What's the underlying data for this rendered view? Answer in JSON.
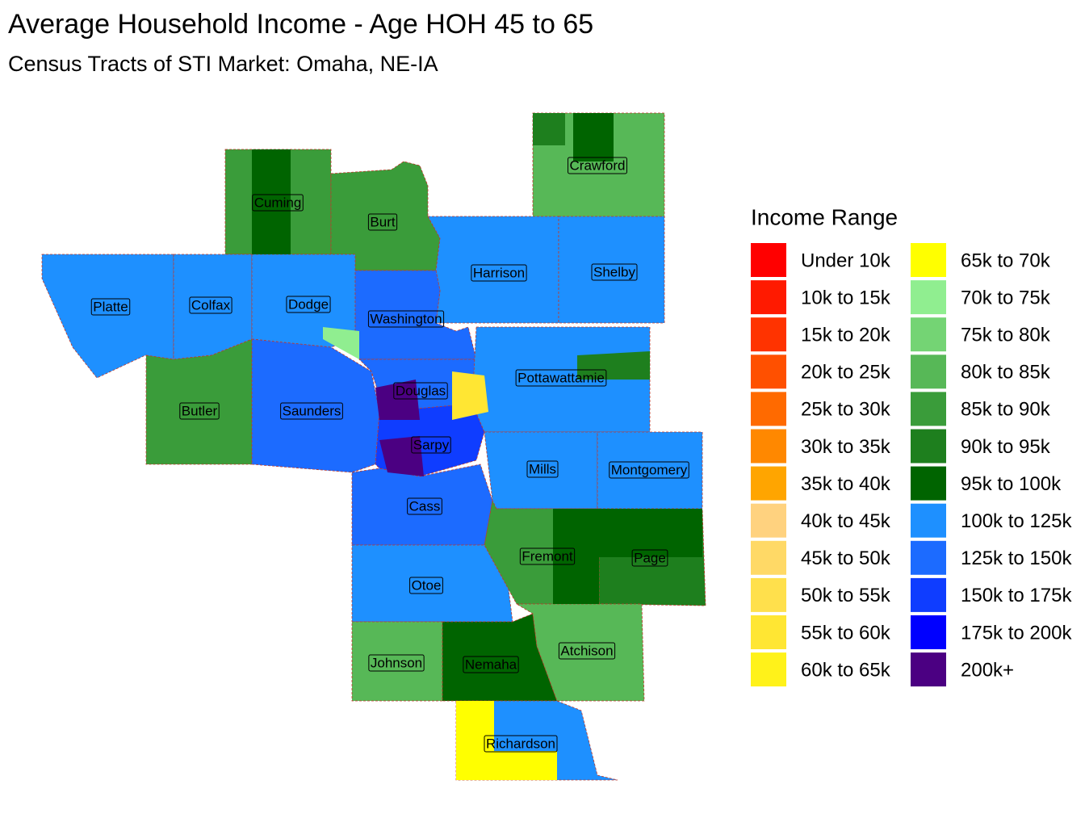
{
  "header": {
    "title": "Average Household Income - Age HOH 45 to 65",
    "subtitle": "Census Tracts of STI Market: Omaha, NE-IA"
  },
  "legend": {
    "title": "Income Range",
    "items": [
      {
        "label": "Under 10k",
        "color": "#ff0000"
      },
      {
        "label": "10k to 15k",
        "color": "#ff1a00"
      },
      {
        "label": "15k to 20k",
        "color": "#ff3300"
      },
      {
        "label": "20k to 25k",
        "color": "#ff5000"
      },
      {
        "label": "25k to 30k",
        "color": "#ff6a00"
      },
      {
        "label": "30k to 35k",
        "color": "#ff8800"
      },
      {
        "label": "35k to 40k",
        "color": "#ffa500"
      },
      {
        "label": "40k to 45k",
        "color": "#ffd27f"
      },
      {
        "label": "45k to 50k",
        "color": "#ffd966"
      },
      {
        "label": "50k to 55k",
        "color": "#ffe04c"
      },
      {
        "label": "55k to 60k",
        "color": "#ffe633"
      },
      {
        "label": "60k to 65k",
        "color": "#fff21a"
      },
      {
        "label": "65k to 70k",
        "color": "#ffff00"
      },
      {
        "label": "70k to 75k",
        "color": "#90ee90"
      },
      {
        "label": "75k to 80k",
        "color": "#74d474"
      },
      {
        "label": "80k to 85k",
        "color": "#57b857"
      },
      {
        "label": "85k to 90k",
        "color": "#3a9c3a"
      },
      {
        "label": "90k to 95k",
        "color": "#1e7f1e"
      },
      {
        "label": "95k to 100k",
        "color": "#006400"
      },
      {
        "label": "100k to 125k",
        "color": "#1e90ff"
      },
      {
        "label": "125k to 150k",
        "color": "#1c6bff"
      },
      {
        "label": "150k to 175k",
        "color": "#0f3dff"
      },
      {
        "label": "175k to 200k",
        "color": "#0000ff"
      },
      {
        "label": "200k+",
        "color": "#4b0082"
      }
    ]
  },
  "counties": [
    "Cuming",
    "Burt",
    "Crawford",
    "Harrison",
    "Shelby",
    "Platte",
    "Colfax",
    "Dodge",
    "Washington",
    "Butler",
    "Saunders",
    "Douglas",
    "Pottawattamie",
    "Sarpy",
    "Mills",
    "Montgomery",
    "Cass",
    "Fremont",
    "Page",
    "Otoe",
    "Johnson",
    "Nemaha",
    "Atchison",
    "Richardson"
  ]
}
